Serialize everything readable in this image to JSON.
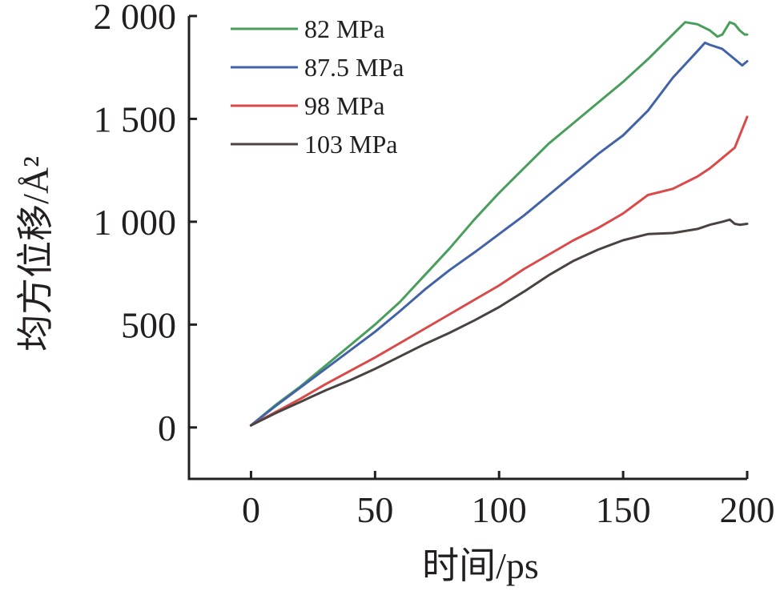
{
  "chart_data": {
    "type": "line",
    "xlabel": "时间/ps",
    "ylabel": "均方位移/Å²",
    "xlim": [
      -25,
      200
    ],
    "ylim": [
      -250,
      2000
    ],
    "x_ticks": [
      0,
      50,
      100,
      150,
      200
    ],
    "x_tick_labels": [
      "0",
      "50",
      "100",
      "150",
      "200"
    ],
    "y_ticks": [
      0,
      500,
      1000,
      1500,
      2000
    ],
    "y_tick_labels": [
      "0",
      "500",
      "1 000",
      "1 500",
      "2 000"
    ],
    "legend_position": "top-left",
    "grid": false,
    "series": [
      {
        "name": "82 MPa",
        "color": "#4a9e5c",
        "x": [
          0,
          10,
          20,
          30,
          40,
          50,
          60,
          70,
          80,
          90,
          100,
          110,
          120,
          130,
          140,
          150,
          160,
          170,
          175,
          180,
          185,
          188,
          190,
          193,
          195,
          197,
          199,
          200
        ],
        "y": [
          10,
          110,
          200,
          300,
          400,
          500,
          610,
          740,
          870,
          1010,
          1140,
          1260,
          1380,
          1480,
          1580,
          1680,
          1790,
          1910,
          1970,
          1960,
          1930,
          1900,
          1910,
          1970,
          1960,
          1930,
          1910,
          1910
        ]
      },
      {
        "name": "87.5 MPa",
        "color": "#4263a8",
        "x": [
          0,
          10,
          20,
          30,
          40,
          50,
          60,
          70,
          80,
          90,
          100,
          110,
          120,
          130,
          140,
          150,
          160,
          170,
          180,
          183,
          185,
          190,
          195,
          198,
          200
        ],
        "y": [
          10,
          105,
          195,
          285,
          375,
          465,
          565,
          670,
          765,
          850,
          940,
          1030,
          1130,
          1230,
          1330,
          1420,
          1540,
          1700,
          1830,
          1870,
          1860,
          1840,
          1790,
          1760,
          1780
        ]
      },
      {
        "name": "98 MPa",
        "color": "#d94a4a",
        "x": [
          0,
          10,
          20,
          30,
          40,
          50,
          60,
          70,
          80,
          90,
          100,
          110,
          120,
          130,
          140,
          150,
          160,
          170,
          180,
          185,
          190,
          195,
          200
        ],
        "y": [
          10,
          75,
          140,
          210,
          275,
          340,
          410,
          480,
          550,
          620,
          690,
          770,
          840,
          910,
          970,
          1040,
          1130,
          1160,
          1220,
          1260,
          1310,
          1360,
          1510
        ]
      },
      {
        "name": "103 MPa",
        "color": "#4b4341",
        "x": [
          0,
          10,
          20,
          30,
          40,
          50,
          60,
          70,
          80,
          90,
          100,
          110,
          120,
          130,
          140,
          150,
          160,
          170,
          180,
          185,
          190,
          193,
          195,
          197,
          200
        ],
        "y": [
          10,
          70,
          125,
          180,
          230,
          285,
          345,
          405,
          460,
          520,
          585,
          660,
          740,
          810,
          865,
          910,
          940,
          945,
          965,
          985,
          1000,
          1010,
          990,
          985,
          990
        ]
      }
    ]
  }
}
